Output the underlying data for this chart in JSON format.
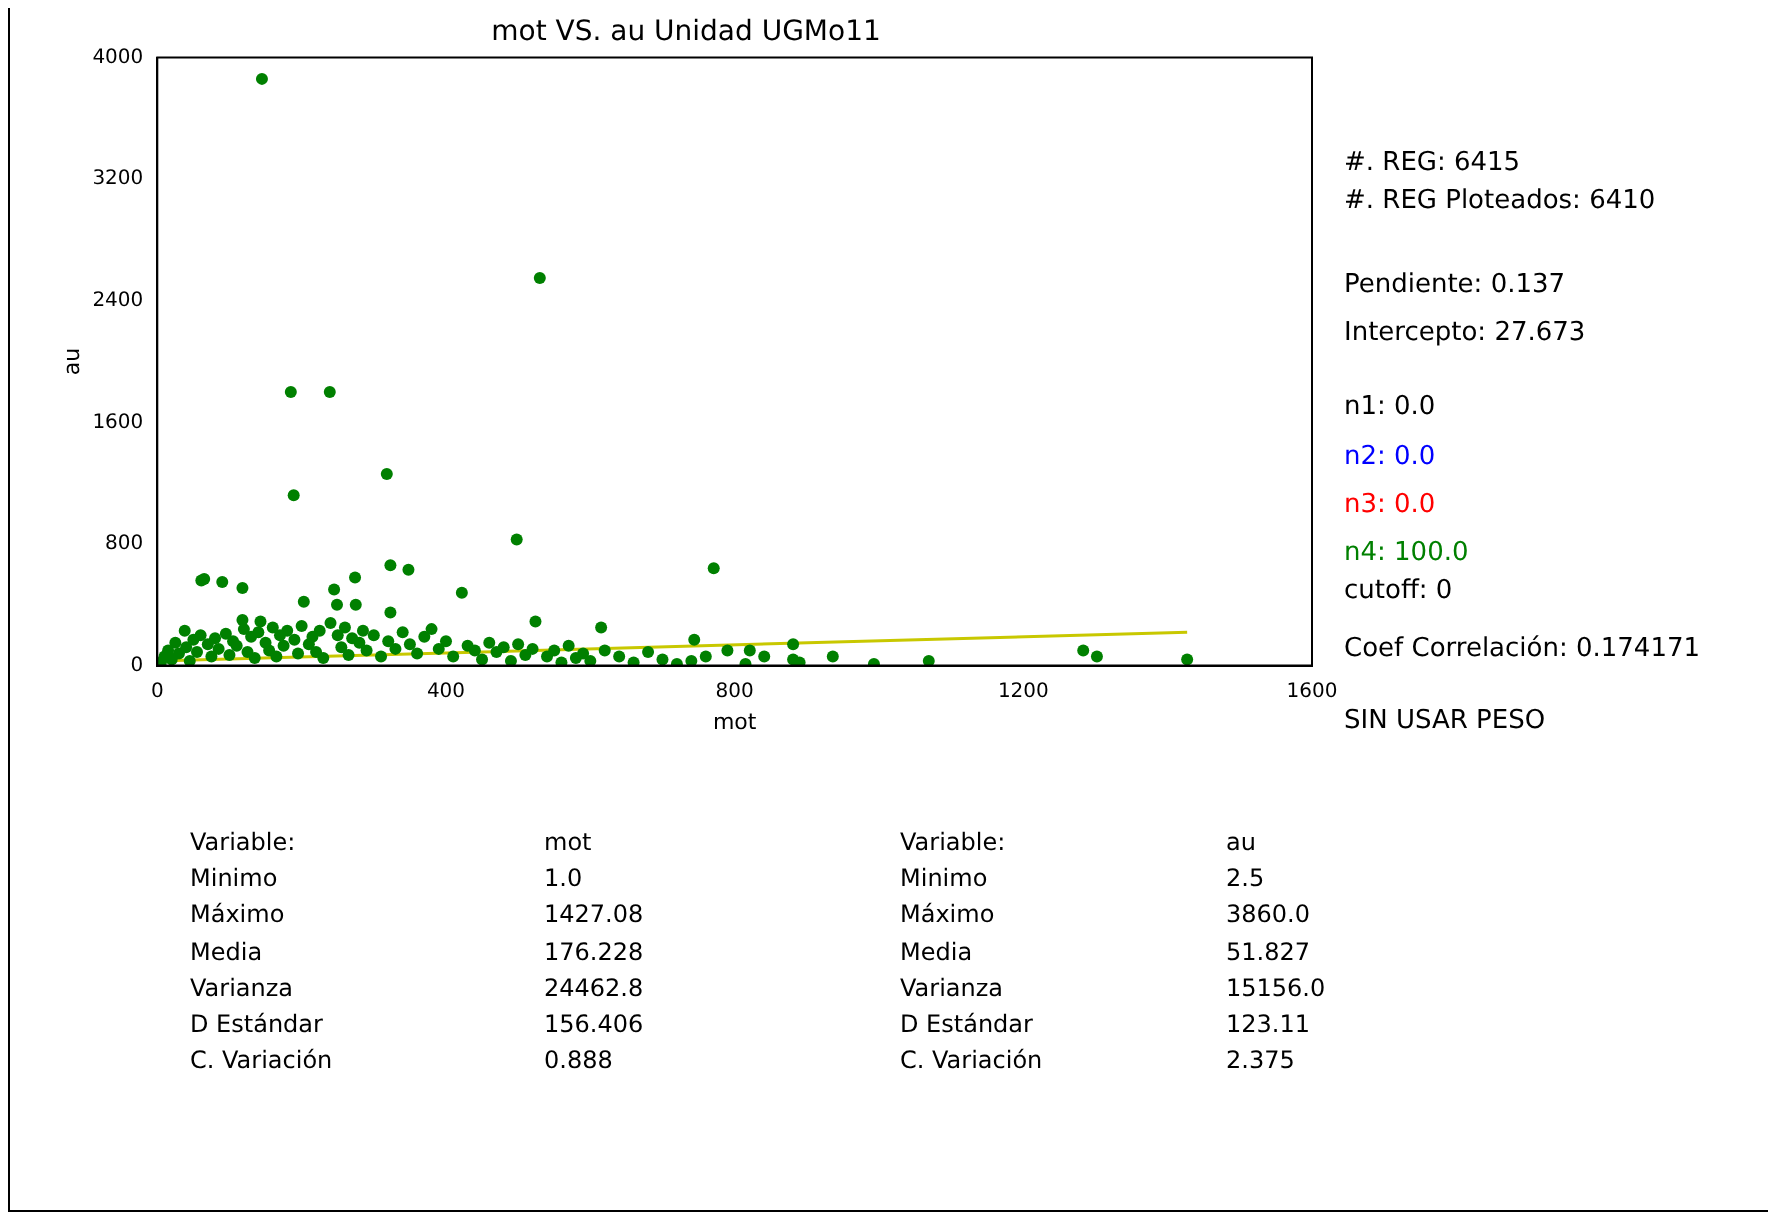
{
  "chart_data": {
    "type": "scatter",
    "title": "mot VS. au Unidad UGMo11",
    "xlabel": "mot",
    "ylabel": "au",
    "xlim": [
      0,
      1600
    ],
    "xticks": [
      0,
      400,
      800,
      1200,
      1600
    ],
    "ylim": [
      0,
      4000
    ],
    "yticks": [
      0,
      800,
      1600,
      2400,
      3200,
      4000
    ],
    "marker": "circle",
    "grid": false,
    "legend": false,
    "series": [
      {
        "color": "#008000",
        "x": [
          5,
          10,
          15,
          20,
          25,
          30,
          38,
          40,
          45,
          50,
          55,
          60,
          61,
          65,
          70,
          75,
          80,
          85,
          90,
          95,
          100,
          105,
          110,
          118,
          118,
          120,
          125,
          130,
          135,
          140,
          143,
          145,
          150,
          155,
          160,
          165,
          170,
          175,
          180,
          185,
          189,
          190,
          195,
          200,
          203,
          210,
          215,
          220,
          225,
          230,
          239,
          240,
          245,
          249,
          250,
          255,
          260,
          265,
          270,
          274,
          275,
          280,
          285,
          290,
          300,
          310,
          318,
          320,
          323,
          323,
          330,
          340,
          348,
          350,
          360,
          370,
          380,
          390,
          400,
          410,
          422,
          430,
          440,
          450,
          460,
          470,
          480,
          490,
          498,
          500,
          510,
          520,
          524,
          530,
          540,
          550,
          560,
          570,
          580,
          590,
          600,
          615,
          620,
          640,
          660,
          680,
          700,
          720,
          740,
          744,
          760,
          771,
          790,
          815,
          821,
          841,
          881,
          881,
          890,
          936,
          993,
          1069,
          1283,
          1302,
          1427
        ],
        "values": [
          20,
          60,
          100,
          40,
          150,
          80,
          230,
          120,
          30,
          170,
          90,
          200,
          560,
          570,
          140,
          60,
          180,
          110,
          550,
          210,
          70,
          160,
          130,
          510,
          300,
          240,
          90,
          190,
          50,
          220,
          290,
          3860,
          150,
          100,
          250,
          60,
          200,
          130,
          230,
          1800,
          1120,
          170,
          80,
          260,
          420,
          140,
          190,
          90,
          230,
          50,
          1800,
          280,
          500,
          400,
          200,
          120,
          250,
          70,
          180,
          580,
          400,
          150,
          230,
          100,
          200,
          60,
          1260,
          160,
          660,
          350,
          110,
          220,
          630,
          140,
          80,
          190,
          240,
          110,
          160,
          60,
          480,
          130,
          100,
          40,
          150,
          90,
          120,
          30,
          830,
          140,
          70,
          110,
          290,
          2550,
          60,
          100,
          20,
          130,
          50,
          80,
          30,
          250,
          100,
          60,
          20,
          90,
          40,
          10,
          30,
          170,
          60,
          640,
          100,
          10,
          100,
          60,
          140,
          40,
          20,
          60,
          10,
          30,
          100,
          60,
          40
        ]
      },
      {
        "type": "line",
        "marker": "none",
        "color": "#c8c800",
        "x": [
          0,
          1427
        ],
        "values": [
          30,
          220
        ]
      }
    ],
    "annotations": [
      "#. REG: 6415",
      "#. REG Ploteados: 6410",
      "Pendiente: 0.137",
      "Intercepto: 27.673",
      "n1: 0.0",
      "n2: 0.0",
      "n3: 0.0",
      "n4: 100.0",
      "cutoff: 0",
      "Coef Correlación: 0.174171",
      "SIN USAR PESO",
      "Variable:",
      "mot",
      "Variable:",
      "au",
      "Minimo",
      "1.0",
      "Minimo",
      "2.5",
      "Máximo",
      "1427.08",
      "Máximo",
      "3860.0",
      "Media",
      "176.228",
      "Media",
      "51.827",
      "Varianza",
      "24462.8",
      "Varianza",
      "15156.0",
      "D Estándar",
      "156.406",
      "D Estándar",
      "123.11",
      "C. Variación",
      "0.888",
      "C. Variación",
      "2.375"
    ]
  }
}
